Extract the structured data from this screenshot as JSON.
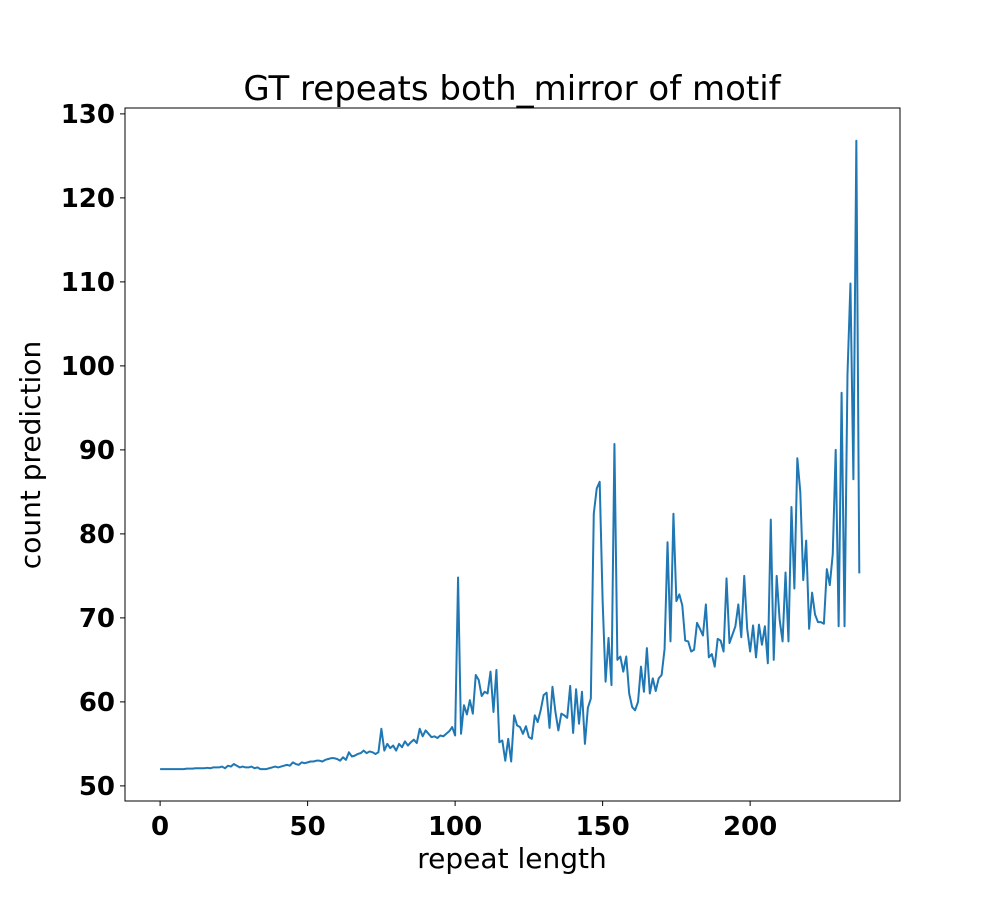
{
  "chart_data": {
    "type": "line",
    "title": "GT repeats both_mirror of motif",
    "x_label": "repeat length",
    "y_label": "count prediction",
    "x": [
      0,
      1,
      2,
      3,
      4,
      5,
      6,
      7,
      8,
      9,
      10,
      11,
      12,
      13,
      14,
      15,
      16,
      17,
      18,
      19,
      20,
      21,
      22,
      23,
      24,
      25,
      26,
      27,
      28,
      29,
      30,
      31,
      32,
      33,
      34,
      35,
      36,
      37,
      38,
      39,
      40,
      41,
      42,
      43,
      44,
      45,
      46,
      47,
      48,
      49,
      50,
      51,
      52,
      53,
      54,
      55,
      56,
      57,
      58,
      59,
      60,
      61,
      62,
      63,
      64,
      65,
      66,
      67,
      68,
      69,
      70,
      71,
      72,
      73,
      74,
      75,
      76,
      77,
      78,
      79,
      80,
      81,
      82,
      83,
      84,
      85,
      86,
      87,
      88,
      89,
      90,
      91,
      92,
      93,
      94,
      95,
      96,
      97,
      98,
      99,
      100,
      101,
      102,
      103,
      104,
      105,
      106,
      107,
      108,
      109,
      110,
      111,
      112,
      113,
      114,
      115,
      116,
      117,
      118,
      119,
      120,
      121,
      122,
      123,
      124,
      125,
      126,
      127,
      128,
      129,
      130,
      131,
      132,
      133,
      134,
      135,
      136,
      137,
      138,
      139,
      140,
      141,
      142,
      143,
      144,
      145,
      146,
      147,
      148,
      149,
      150,
      151,
      152,
      153,
      154,
      155,
      156,
      157,
      158,
      159,
      160,
      161,
      162,
      163,
      164,
      165,
      166,
      167,
      168,
      169,
      170,
      171,
      172,
      173,
      174,
      175,
      176,
      177,
      178,
      179,
      180,
      181,
      182,
      183,
      184,
      185,
      186,
      187,
      188,
      189,
      190,
      191,
      192,
      193,
      194,
      195,
      196,
      197,
      198,
      199,
      200,
      201,
      202,
      203,
      204,
      205,
      206,
      207,
      208,
      209,
      210,
      211,
      212,
      213,
      214,
      215,
      216,
      217,
      218,
      219,
      220,
      221,
      222,
      223,
      224,
      225,
      226,
      227,
      228,
      229,
      230,
      231,
      232,
      233,
      234,
      235,
      236,
      237
    ],
    "series": [
      {
        "color": "#1f77b4",
        "values": [
          52,
          52,
          52,
          52,
          52,
          52,
          52,
          52,
          52,
          52.05,
          52.05,
          52.05,
          52.1,
          52.1,
          52.1,
          52.1,
          52.15,
          52.1,
          52.2,
          52.2,
          52.2,
          52.3,
          52.1,
          52.4,
          52.3,
          52.6,
          52.4,
          52.2,
          52.3,
          52.2,
          52.2,
          52.3,
          52.1,
          52.2,
          52.0,
          52.0,
          52.0,
          52.1,
          52.2,
          52.3,
          52.2,
          52.3,
          52.4,
          52.5,
          52.4,
          52.8,
          52.6,
          52.5,
          52.8,
          52.7,
          52.8,
          52.9,
          52.9,
          53.0,
          53.0,
          52.9,
          53.1,
          53.2,
          53.3,
          53.3,
          53.2,
          53.0,
          53.4,
          53.1,
          54.0,
          53.5,
          53.6,
          53.8,
          53.9,
          54.2,
          53.9,
          54.1,
          54.0,
          53.8,
          54.0,
          56.8,
          54.2,
          55.0,
          54.5,
          54.8,
          54.2,
          55.0,
          54.6,
          55.3,
          54.8,
          55.2,
          55.5,
          55.1,
          56.8,
          55.9,
          56.6,
          56.2,
          55.8,
          55.9,
          55.7,
          56.0,
          55.9,
          56.2,
          56.5,
          57.0,
          56.0,
          74.8,
          56.2,
          59.6,
          58.5,
          60.2,
          58.6,
          63.2,
          62.6,
          60.7,
          61.2,
          61.0,
          63.6,
          58.8,
          63.8,
          55.2,
          55.4,
          53.0,
          55.6,
          52.9,
          58.4,
          57.2,
          57.0,
          56.2,
          57.1,
          55.8,
          55.6,
          58.4,
          57.6,
          59.0,
          60.8,
          61.1,
          56.9,
          61.8,
          58.8,
          56.6,
          58.6,
          58.4,
          58.1,
          61.9,
          56.3,
          61.5,
          57.4,
          61.2,
          55.0,
          59.3,
          60.4,
          82.4,
          85.4,
          86.2,
          72.0,
          62.4,
          67.6,
          62.0,
          90.7,
          65.0,
          65.4,
          63.6,
          65.4,
          61.0,
          59.4,
          59.0,
          60.0,
          64.2,
          61.2,
          66.4,
          61.0,
          62.8,
          61.3,
          62.8,
          63.2,
          66.3,
          79.0,
          67.2,
          82.4,
          72.0,
          72.8,
          71.5,
          67.3,
          67.2,
          66.0,
          66.2,
          69.4,
          68.7,
          67.9,
          71.6,
          65.3,
          65.7,
          64.2,
          67.5,
          67.3,
          66.0,
          74.7,
          67.0,
          68.0,
          69.0,
          71.6,
          67.7,
          75.0,
          68.7,
          66.0,
          69.1,
          65.3,
          69.2,
          66.8,
          69.0,
          64.6,
          81.7,
          65.0,
          75.0,
          69.8,
          67.2,
          75.4,
          67.2,
          83.2,
          73.5,
          89.0,
          85.0,
          74.5,
          79.2,
          68.7,
          73.0,
          70.4,
          69.5,
          69.5,
          69.3,
          75.8,
          73.9,
          77.6,
          90.0,
          69.0,
          96.8,
          69.0,
          99.0,
          109.8,
          86.5,
          126.8,
          75.3
        ]
      }
    ],
    "xlim": [
      -11.9,
      250.8
    ],
    "ylim": [
      48.2,
      130.7
    ],
    "xticks": [
      0,
      50,
      100,
      150,
      200
    ],
    "yticks": [
      50,
      60,
      70,
      80,
      90,
      100,
      110,
      120,
      130
    ],
    "grid": false
  }
}
